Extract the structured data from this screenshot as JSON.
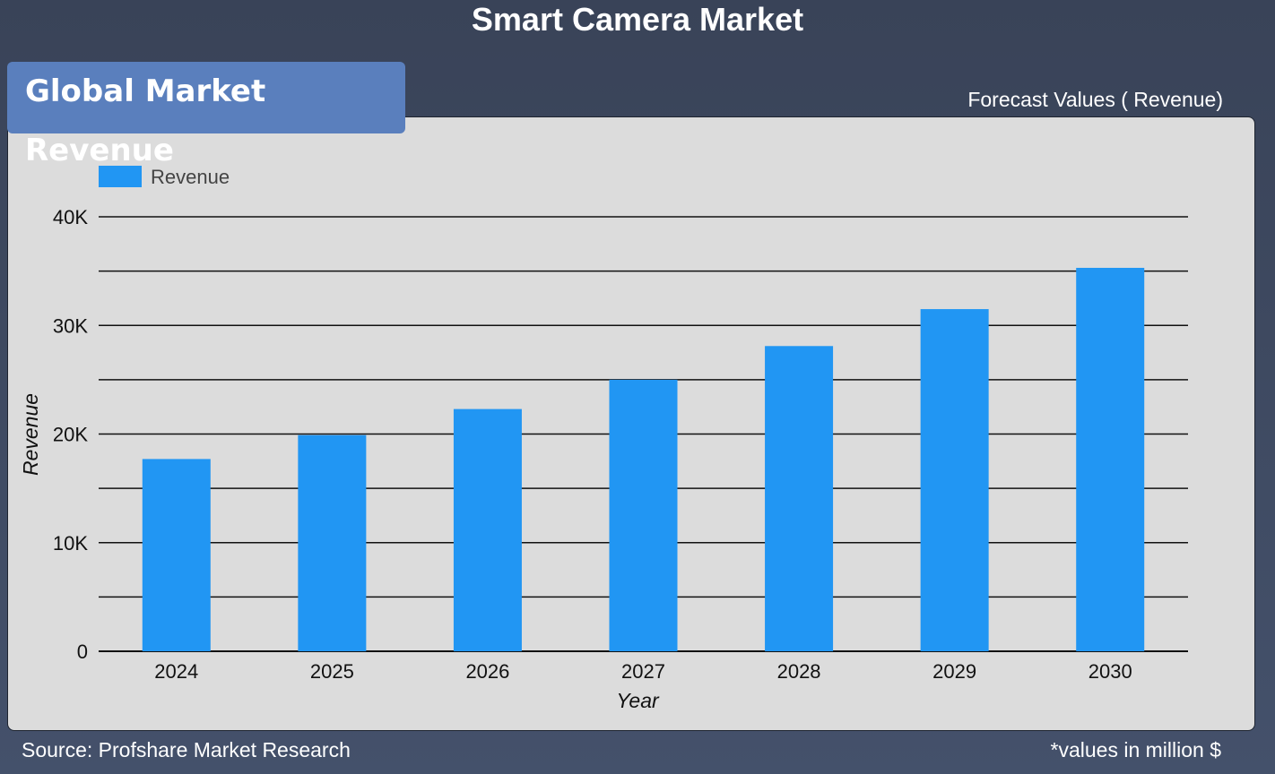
{
  "header": {
    "title": "Smart Camera Market"
  },
  "tab": {
    "label": "Global Market Revenue"
  },
  "forecast_label": "Forecast Values ( Revenue)",
  "footer": {
    "source": "Source: Profshare Market Research",
    "note": "*values in million $"
  },
  "colors": {
    "bar": "#2196f3",
    "background": "#394358",
    "panel": "#dcdcdc",
    "tab": "#5a7fbd"
  },
  "chart_data": {
    "type": "bar",
    "categories": [
      "2024",
      "2025",
      "2026",
      "2027",
      "2028",
      "2029",
      "2030"
    ],
    "series": [
      {
        "name": "Revenue",
        "values": [
          17700,
          19900,
          22300,
          25000,
          28100,
          31500,
          35300
        ]
      }
    ],
    "xlabel": "Year",
    "ylabel": "Revenue",
    "ylim": [
      0,
      40000
    ],
    "yticks": [
      0,
      10000,
      20000,
      30000,
      40000
    ],
    "ytick_labels": [
      "0",
      "10K",
      "20K",
      "30K",
      "40K"
    ],
    "grid": true,
    "legend_position": "top-left"
  }
}
